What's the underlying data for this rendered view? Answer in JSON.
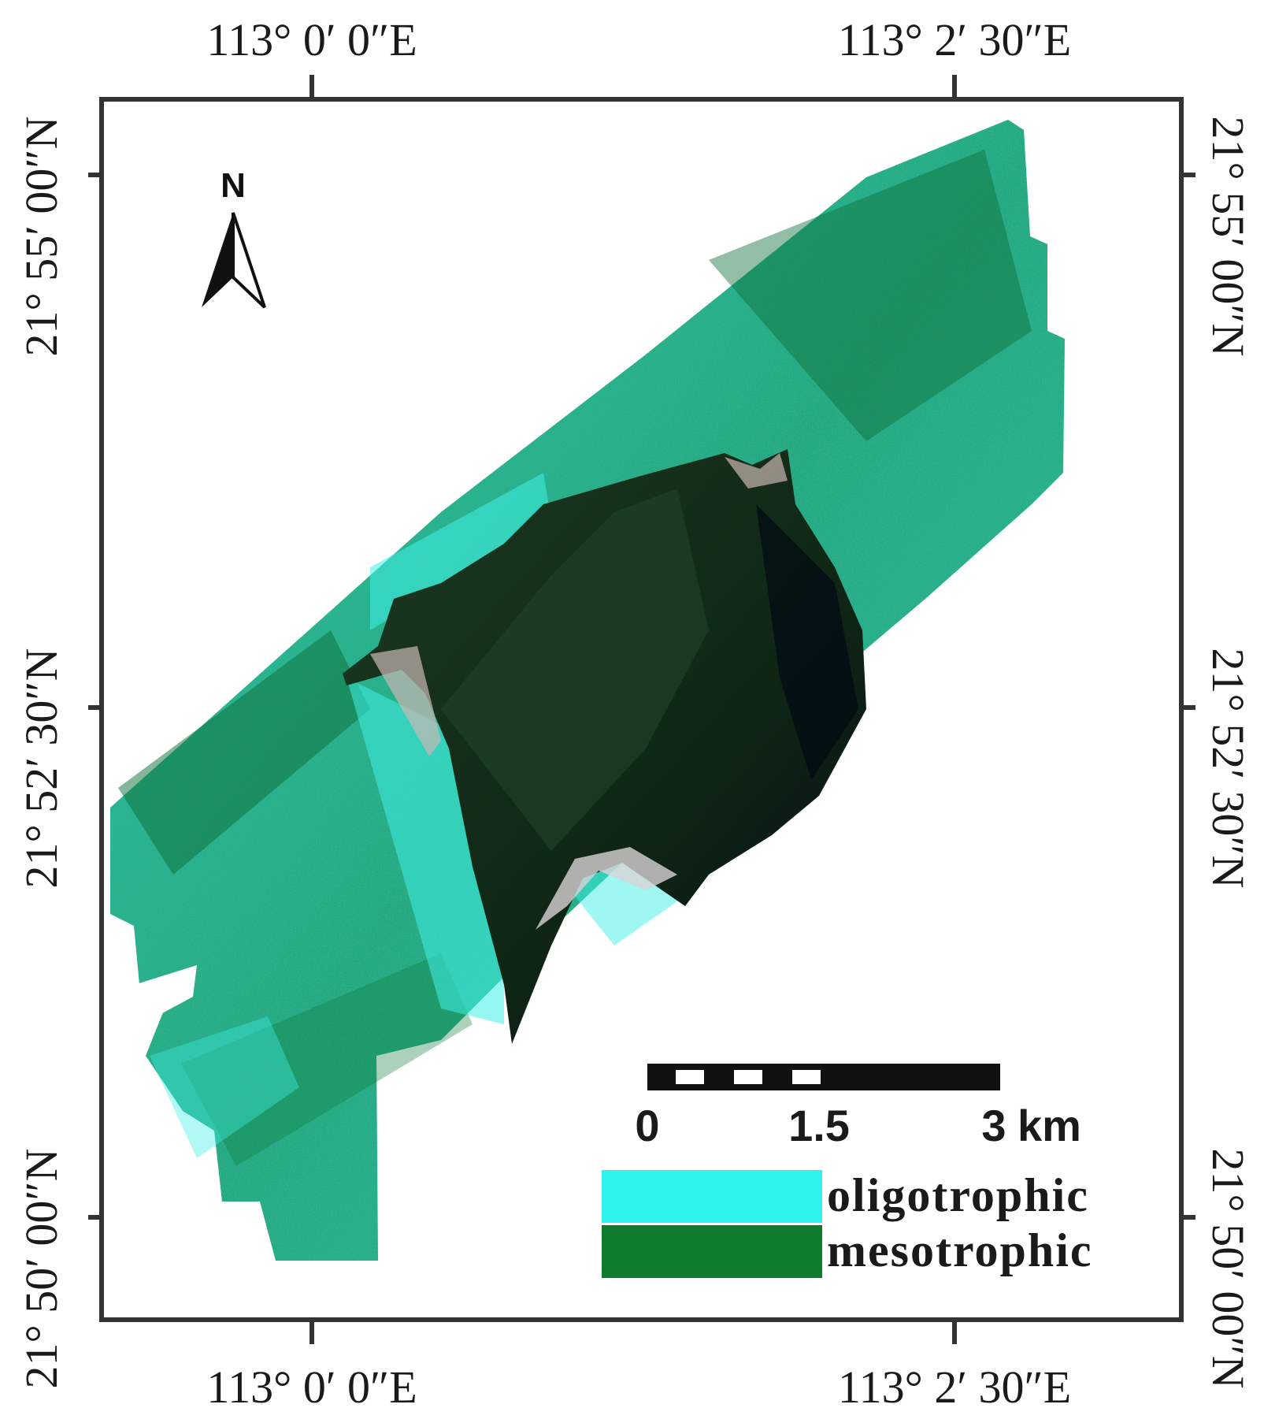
{
  "coordinates": {
    "top": [
      "113° 0′ 0″E",
      "113° 2′ 30″E"
    ],
    "bottom": [
      "113° 0′ 0″E",
      "113° 2′ 30″E"
    ],
    "left": [
      "21° 55′ 00″N",
      "21° 52′ 30″N",
      "21° 50′ 00″N"
    ],
    "right": [
      "21° 55′ 00″N",
      "21° 52′ 30″N",
      "21° 50′ 00″N"
    ]
  },
  "north_arrow": {
    "label": "N"
  },
  "scale_bar": {
    "labels": [
      "0",
      "1.5",
      "3"
    ],
    "unit": "km"
  },
  "legend": [
    {
      "label": "oligotrophic",
      "color": "#2ef2ec"
    },
    {
      "label": "mesotrophic",
      "color": "#0d7a2c"
    }
  ],
  "colors": {
    "frame": "#333333",
    "land": "#0f2a16"
  }
}
